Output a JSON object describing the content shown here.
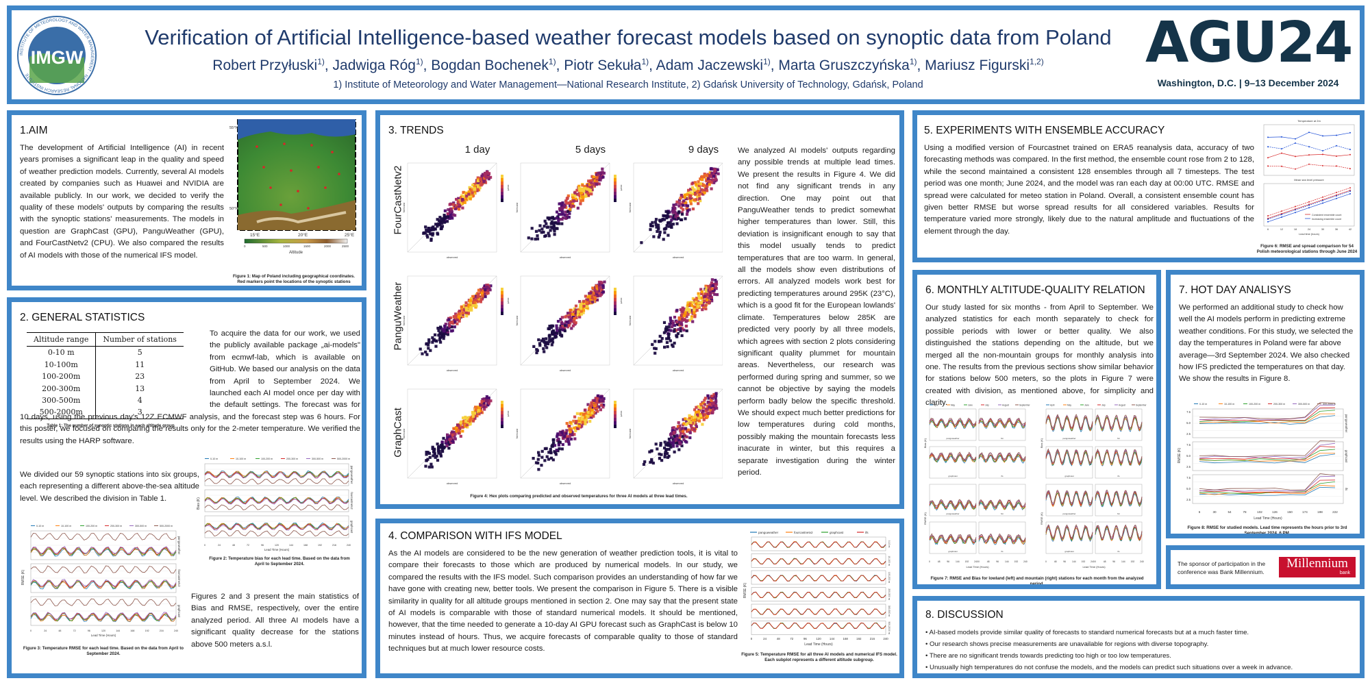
{
  "header": {
    "title": "Verification of Artificial Intelligence-based weather forecast models based on synoptic data from Poland",
    "authors": "Robert Przyłuski1), Jadwiga Róg1), Bogdan Bochenek1), Piotr Sekuła1), Adam Jaczewski1), Marta Gruszczyńska1), Mariusz Figurski1,2)",
    "affiliations": "1) Institute of Meteorology and Water Management—National Research Institute, 2) Gdańsk University of Technology, Gdańsk, Poland",
    "logo_text": "IMGW",
    "logo_ring_text": "INSTITUTE OF METEOROLOGY AND WATER MANAGEMENT · NATIONAL RESEARCH INSTITUTE",
    "agu_logo": "AGU24",
    "event": "Washington, D.C. | 9–13 December 2024"
  },
  "aim": {
    "title": "1.AIM",
    "body": "The development of Artificial Intelligence (AI) in recent years promises a significant leap in the quality and speed of weather prediction models. Currently, several AI models created by companies such as Huawei and NVIDIA are available publicly. In our work, we decided to verify the quality of these models' outputs by comparing the results with the synoptic stations' measurements. The models in question are GraphCast (GPU), PanguWeather (GPU), and FourCastNetv2 (CPU). We also compared the results of AI models with those of the numerical IFS model.",
    "fig_caption": "Figure 1: Map of Poland including geographical coordinates. Red markers point the locations of the synoptic stations",
    "map_lat_labels": [
      "55°N",
      "50°N"
    ],
    "map_lon_labels": [
      "15°E",
      "20°E",
      "25°E"
    ],
    "colorbar_label": "Altitude",
    "colorbar_ticks": [
      "0",
      "500",
      "1000",
      "1500",
      "2000",
      "2500"
    ]
  },
  "general": {
    "title": "2. GENERAL STATISTICS",
    "p1": "To acquire the data for our work, we used the publicly available package „ai-models\" from ecmwf-lab, which is available on GitHub. We based our analysis on the data from April to September 2024. We launched each AI model once per day with the default settings. The forecast was for 10 days, using the previous day's 12Z ECMWF analysis, and the forecast step was 6 hours. For this poster, we focused on comparing the results only for the 2-meter temperature. We verified the results using the HARP software.",
    "table_headers": [
      "Altitude range",
      "Number of stations"
    ],
    "table_rows": [
      [
        "0-10 m",
        "5"
      ],
      [
        "10-100m",
        "11"
      ],
      [
        "100-200m",
        "23"
      ],
      [
        "200-300m",
        "13"
      ],
      [
        "300-500m",
        "4"
      ],
      [
        "500-2000m",
        "3"
      ]
    ],
    "table_caption": "Table 1: The number of synoptic stations in each altitude group",
    "p2": "We divided our 59 synoptic stations into six groups, each representing a different above-the-sea altitude level. We described the division in Table 1.",
    "p3": "Figures 2 and 3 present the main statistics of Bias and RMSE, respectively, over the entire analyzed period. All three AI models have a significant quality decrease for the stations above 500 meters a.s.l.",
    "fig2_caption": "Figure 2: Temperature bias for each lead time. Based on the data from April to September 2024.",
    "fig3_caption": "Figure 3: Temperature RMSE for each lead time. Based on the data from April to September 2024.",
    "legend": [
      "0-10 m",
      "10-100 m",
      "100-200 m",
      "200-300 m",
      "300-500 m",
      "500-2000 m"
    ],
    "panel_labels": [
      "panguweather",
      "fourcastnetv2",
      "graphcast"
    ],
    "xlabel": "Lead Time (Hours)",
    "fig2_ylabel": "Bias (K)",
    "fig3_ylabel": "RMSE (K)",
    "x_ticks": [
      "0",
      "12",
      "24",
      "36",
      "48",
      "60",
      "72",
      "84",
      "96",
      "108",
      "120",
      "132",
      "144",
      "156",
      "168",
      "180",
      "192",
      "204",
      "216",
      "228",
      "240"
    ]
  },
  "trends": {
    "title": "3. TRENDS",
    "col_heads": [
      "1 day",
      "5 days",
      "9 days"
    ],
    "row_heads": [
      "FourCastNetv2",
      "PanguWeather",
      "GraphCast"
    ],
    "body": "We analyzed AI models' outputs regarding any possible trends at multiple lead times. We present the results in Figure 4. We did not find any significant trends in any direction. One may point out that PanguWeather tends to predict somewhat higher temperatures than lower. Still, this deviation is insignificant enough to say that this model usually tends to predict temperatures that are too warm. In general, all the models show even distributions of errors. All analyzed models work best for predicting temperatures around 295K (23°C), which is a good fit for the European lowlands' climate. Temperatures below 285K are predicted very poorly by all three models, which agrees with section 2 plots considering significant quality plummet for mountain areas. Nevertheless, our research was performed during spring and summer, so we cannot be objective by saying the models perform badly below the specific threshold. We should expect much better predictions for low temperatures during cold months, possibly making the mountain forecasts less inacurate in winter, but this requires a separate investigation during the winter period.",
    "fig_caption": "Figure 4: Hex plots comparing predicted and observed temperatures for three AI models at three lead times.",
    "xlabel": "observed",
    "ylabel": "forecast",
    "cbar_label": "count"
  },
  "ifs": {
    "title": "4. COMPARISON WITH IFS MODEL",
    "body": "As the AI models are considered to be the new generation of weather prediction tools, it is vital to compare their forecasts to those which are produced by numerical models. In our study, we compared the results with the IFS model. Such comparison provides an understanding of how far we have gone with creating new, better tools. We present the comparison in Figure 5. There is a visible similarity in quality for all altitude groups mentioned in section 2. One may say that the present state of AI models is comparable with those of standard numerical models. It should be mentioned, however, that the time needed to generate a 10-day AI GPU forecast such as GraphCast is below 10 minutes instead of hours. Thus, we acquire forecasts of comparable quality to those of standard techniques but at much lower resource costs.",
    "legend": [
      "panguweather",
      "fourcastnetv2",
      "graphcast",
      "ifs"
    ],
    "xlabel": "Lead Time (Hours)",
    "ylabel": "RMSE (K)",
    "x_ticks": [
      "0",
      "24",
      "48",
      "72",
      "96",
      "120",
      "144",
      "168",
      "192",
      "216",
      "240"
    ],
    "panel_labels": [
      "0-10 m",
      "10-100 m",
      "100-200 m",
      "200-300 m",
      "300-500 m",
      "500-2000 m"
    ],
    "fig_caption": "Figure 5: Temperature RMSE for all three AI models and numerical IFS model. Each subplot represents a different altitude subgroup."
  },
  "ensemble": {
    "title": "5. EXPERIMENTS WITH ENSEMBLE ACCURACY",
    "body": "Using a modified version of Fourcastnet trained on ERA5 reanalysis data, accuracy of two forecasting methods was compared. In the first method, the ensemble count rose from 2 to 128, while the second maintained a consistent 128 ensembles through all 7 timesteps. The test period was one month; June 2024, and the model was ran each day at 00:00 UTC. RMSE and spread were calculated for meteo station in Poland. Overall, a consistent ensemble count has given better RMSE but worse spread results for all considered variables. Results for temperature varied more strongly, likely due to the natural amplitude and fluctuations of the element through the day.",
    "plot1_title": "Temperature at 2m",
    "plot2_title": "Mean sea level pressure",
    "legend": [
      "Consistent ensemble count",
      "Increasing ensemble count"
    ],
    "xlabel": "Lead time (hours)",
    "x_ticks": [
      "6",
      "12",
      "18",
      "24",
      "30",
      "36",
      "42"
    ],
    "fig_caption": "Figure 6: RMSE and spread comparison for 54 Polish meteorological stations through June 2024"
  },
  "monthly": {
    "title": "6. MONTHLY ALTITUDE-QUALITY RELATION",
    "body": "Our study lasted for six months - from April to September. We analyzed statistics for each month separately to check for possible periods with lower or better quality. We also distinguished the stations depending on the altitude, but we merged all the non-mountain groups for monthly analysis into one. The results from the previous sections show similar behavior for stations below 500 meters, so the plots in Figure 7 were created with division, as mentioned above, for simplicity and clarity.",
    "legend": [
      "April",
      "May",
      "June",
      "July",
      "August",
      "September"
    ],
    "xlabel": "Lead Time (Hours)",
    "x_ticks": [
      "0",
      "48",
      "96",
      "144",
      "192",
      "240"
    ],
    "panel_labels": [
      "panguweather",
      "fcn",
      "graphcast",
      "ifs"
    ],
    "bias_label": "Bias (K)",
    "rmse_label": "RMSE (K)",
    "fig_caption": "Figure 7: RMSE and Bias for lowland (left) and mountain (right) stations for each month from the analyzed period."
  },
  "hotday": {
    "title": "7. HOT DAY ANALISYS",
    "body": "We performed an additional study to check how well the AI models perform in predicting extreme weather conditions. For this study, we selected the day the temperatures in Poland were far above average—3rd September 2024. We also checked how IFS predicted the temperatures on that day. We show the results in Figure 8.",
    "legend": [
      "0-10 m",
      "10-100 m",
      "100-200 m",
      "200-300 m",
      "300-500 m",
      "500-2000 m"
    ],
    "panel_labels": [
      "panguweather",
      "graphcast",
      "ifs"
    ],
    "xlabel": "Lead Time (Hours)",
    "ylabel": "RMSE (K)",
    "x_ticks": [
      "6",
      "30",
      "54",
      "78",
      "102",
      "126",
      "150",
      "174",
      "198",
      "222"
    ],
    "fig_caption": "Figure 8: RMSE for studied models. Lead time represents the hours prior to 3rd September 2024, 6 PM."
  },
  "sponsor": {
    "text": "The sponsor of participation in the conference was Bank Millennium.",
    "logo": "Millennium",
    "logo_sub": "bank"
  },
  "discussion": {
    "title": "8. DISCUSSION",
    "items": [
      "AI-based models provide similar quality of forecasts to standard numerical forecasts but at a much faster time.",
      "Our research shows precise measurements are unavailable for regions with diverse topography.",
      "There are no significant trends towards predicting too high or too low temperatures.",
      "Unusually high temperatures do not confuse the models, and the models can predict such situations over a week in advance."
    ]
  },
  "colors": {
    "frame": "#3f86c8",
    "title_navy": "#1f3a6b",
    "agu_navy": "#153449",
    "series": [
      "#1f77b4",
      "#ff7f0e",
      "#2ca02c",
      "#d62728",
      "#9467bd",
      "#8c564b"
    ],
    "millennium": "#c8102e"
  }
}
